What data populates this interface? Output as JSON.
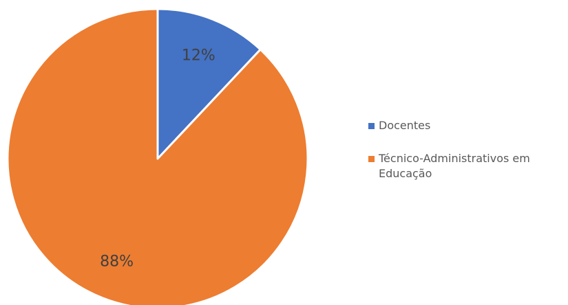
{
  "chart_data": {
    "type": "pie",
    "title": "",
    "categories": [
      "Docentes",
      "Técnico-Administrativos em Educação"
    ],
    "values": [
      12,
      88
    ],
    "labels": [
      "12%",
      "88%"
    ],
    "colors": [
      "#4472C4",
      "#ED7D31"
    ],
    "start_angle_deg": 0,
    "direction": "clockwise",
    "legend_position": "right"
  },
  "legend": {
    "items": [
      {
        "label": "Docentes",
        "color": "#4472C4"
      },
      {
        "label": "Técnico-Administrativos em Educação",
        "color": "#ED7D31"
      }
    ]
  }
}
